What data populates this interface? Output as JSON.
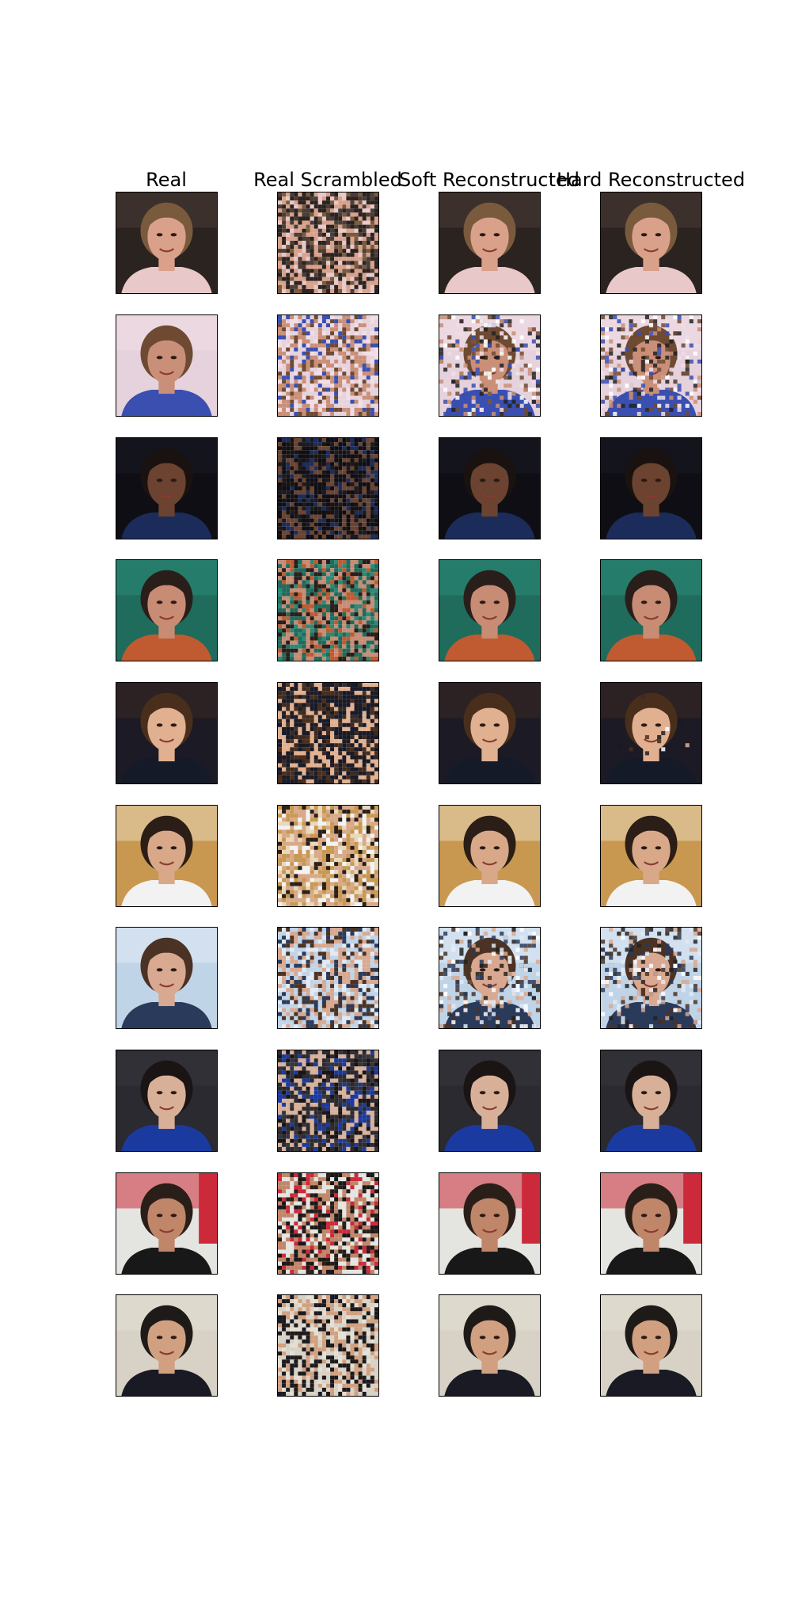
{
  "columns": [
    "Real",
    "Real Scrambled",
    "Soft Reconstructed",
    "Hard Reconstructed"
  ],
  "rows": [
    {
      "subject": "man-bald-light",
      "palette": {
        "bg": "#2b2320",
        "bg2": "#4a3d38",
        "skin": "#d9a08a",
        "hair": "#7a5a3c",
        "cloth": "#e8c8c8"
      },
      "quality": {
        "soft": "good",
        "hard": "good"
      }
    },
    {
      "subject": "woman-long-brown-hair",
      "palette": {
        "bg": "#e6d2dc",
        "bg2": "#f0dde6",
        "skin": "#c98f78",
        "hair": "#6e4a32",
        "cloth": "#3a4fb0"
      },
      "quality": {
        "soft": "poor",
        "hard": "poor"
      }
    },
    {
      "subject": "man-dark-smiling",
      "palette": {
        "bg": "#0e0e14",
        "bg2": "#1a1a22",
        "skin": "#6b4330",
        "hair": "#1a1210",
        "cloth": "#1c2c5a"
      },
      "quality": {
        "soft": "good",
        "hard": "good"
      }
    },
    {
      "subject": "woman-wet-hair-pool",
      "palette": {
        "bg": "#1f6b5c",
        "bg2": "#2a8a76",
        "skin": "#c88b74",
        "hair": "#2a1e1a",
        "cloth": "#c05a30"
      },
      "quality": {
        "soft": "good",
        "hard": "good"
      }
    },
    {
      "subject": "young-man-brown-hair",
      "palette": {
        "bg": "#1c1a24",
        "bg2": "#3a2a22",
        "skin": "#e0b090",
        "hair": "#4a2e1c",
        "cloth": "#141a28"
      },
      "quality": {
        "soft": "good",
        "hard": "fair"
      }
    },
    {
      "subject": "man-ponytail-white-shirt",
      "palette": {
        "bg": "#c89850",
        "bg2": "#e8d8b8",
        "skin": "#d8a888",
        "hair": "#2a1e16",
        "cloth": "#f2f2f2"
      },
      "quality": {
        "soft": "good",
        "hard": "good"
      }
    },
    {
      "subject": "woman-shag-hair",
      "palette": {
        "bg": "#c0d4e8",
        "bg2": "#e0eaf4",
        "skin": "#d8a890",
        "hair": "#4a3224",
        "cloth": "#2a3a5a"
      },
      "quality": {
        "soft": "poor",
        "hard": "poor"
      }
    },
    {
      "subject": "woman-dark-hair-racing",
      "palette": {
        "bg": "#2a2a30",
        "bg2": "#34343c",
        "skin": "#d8b098",
        "hair": "#1a1414",
        "cloth": "#1a3aa0"
      },
      "quality": {
        "soft": "good",
        "hard": "good"
      }
    },
    {
      "subject": "bald-man-red-bg",
      "palette": {
        "bg": "#e4e4e0",
        "bg2": "#cc2a3a",
        "skin": "#c0866a",
        "hair": "#2a1e18",
        "cloth": "#181818"
      },
      "quality": {
        "soft": "good",
        "hard": "good"
      }
    },
    {
      "subject": "man-glasses-suit",
      "palette": {
        "bg": "#d8d2c6",
        "bg2": "#e4dfd4",
        "skin": "#d0a080",
        "hair": "#1e1a18",
        "cloth": "#1a1a24"
      },
      "quality": {
        "soft": "good",
        "hard": "good"
      }
    }
  ]
}
